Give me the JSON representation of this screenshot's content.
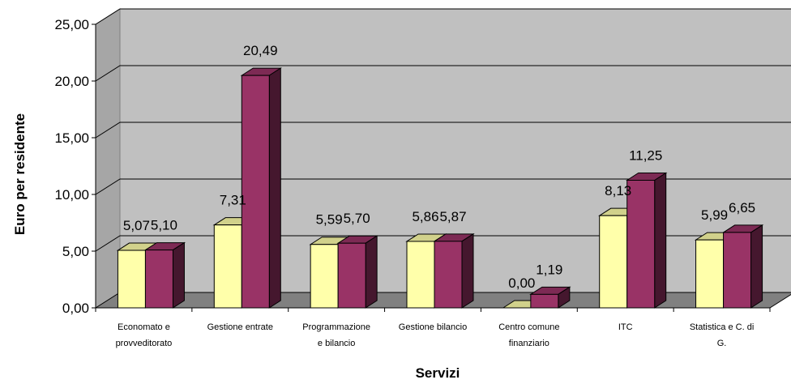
{
  "chart_data": {
    "type": "bar",
    "title": "",
    "xlabel": "Servizi",
    "ylabel": "Euro per residente",
    "ylim": [
      0,
      25
    ],
    "yticks": [
      "0,00",
      "5,00",
      "10,00",
      "15,00",
      "20,00",
      "25,00"
    ],
    "grid": true,
    "three_d": true,
    "categories": [
      [
        "Economato e",
        "provveditorato"
      ],
      [
        "Gestione entrate"
      ],
      [
        "Programmazione",
        "e bilancio"
      ],
      [
        "Gestione bilancio"
      ],
      [
        "Centro comune",
        "finanziario"
      ],
      [
        "ITC"
      ],
      [
        "Statistica e C. di",
        "G."
      ]
    ],
    "series": [
      {
        "values": [
          5.07,
          7.31,
          5.59,
          5.86,
          0.0,
          8.13,
          5.99
        ],
        "labels": [
          "5,07",
          "7,31",
          "5,59",
          "5,86",
          "0,00",
          "8,13",
          "5,99"
        ],
        "color": "#FFFFAA"
      },
      {
        "values": [
          5.1,
          20.49,
          5.7,
          5.87,
          1.19,
          11.25,
          6.65
        ],
        "labels": [
          "5,10",
          "20,49",
          "5,70",
          "5,87",
          "1,19",
          "11,25",
          "6,65"
        ],
        "color": "#993366"
      }
    ],
    "colors": {
      "wall": "#C0C0C0",
      "floor": "#808080",
      "grid": "#000000"
    }
  }
}
